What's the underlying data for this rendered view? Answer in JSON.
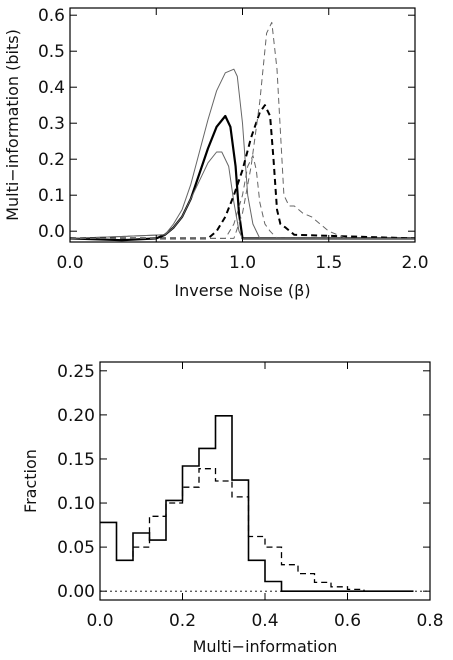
{
  "chart_data": [
    {
      "type": "line",
      "title": "",
      "xlabel": "Inverse Noise (β)",
      "ylabel": "Multi−information (bits)",
      "xlim": [
        0.0,
        2.0
      ],
      "ylim": [
        -0.03,
        0.62
      ],
      "xticks": [
        "0.0",
        "0.5",
        "1.0",
        "1.5",
        "2.0"
      ],
      "yticks": [
        "0.0",
        "0.1",
        "0.2",
        "0.3",
        "0.4",
        "0.5",
        "0.6"
      ],
      "grid": false,
      "series": [
        {
          "style": "solid-thick",
          "color": "#000000",
          "x": [
            0.0,
            0.3,
            0.5,
            0.55,
            0.6,
            0.65,
            0.7,
            0.75,
            0.8,
            0.85,
            0.9,
            0.93,
            0.96,
            0.98,
            1.0,
            2.0
          ],
          "y": [
            -0.02,
            -0.025,
            -0.02,
            -0.01,
            0.01,
            0.04,
            0.09,
            0.16,
            0.23,
            0.29,
            0.32,
            0.29,
            0.18,
            0.05,
            -0.02,
            -0.02
          ]
        },
        {
          "style": "solid-thin",
          "color": "#666666",
          "x": [
            0.0,
            0.55,
            0.6,
            0.65,
            0.7,
            0.75,
            0.8,
            0.85,
            0.9,
            0.95,
            0.97,
            1.0,
            1.03,
            1.06,
            1.1,
            1.15,
            2.0
          ],
          "y": [
            -0.02,
            -0.01,
            0.02,
            0.06,
            0.13,
            0.22,
            0.31,
            0.39,
            0.44,
            0.45,
            0.43,
            0.3,
            0.1,
            0.02,
            -0.02,
            -0.02,
            -0.02
          ]
        },
        {
          "style": "solid-thin",
          "color": "#666666",
          "x": [
            0.0,
            0.55,
            0.6,
            0.65,
            0.7,
            0.75,
            0.8,
            0.85,
            0.88,
            0.92,
            0.95,
            0.98,
            1.0,
            2.0
          ],
          "y": [
            -0.02,
            -0.01,
            0.01,
            0.04,
            0.09,
            0.14,
            0.19,
            0.22,
            0.22,
            0.18,
            0.08,
            0.0,
            -0.02,
            -0.02
          ]
        },
        {
          "style": "dashed-thick",
          "color": "#000000",
          "x": [
            0.0,
            0.8,
            0.85,
            0.9,
            0.95,
            1.0,
            1.05,
            1.1,
            1.13,
            1.16,
            1.18,
            1.2,
            1.22,
            1.25,
            1.3,
            2.0
          ],
          "y": [
            -0.02,
            -0.02,
            0.0,
            0.04,
            0.1,
            0.17,
            0.26,
            0.33,
            0.35,
            0.32,
            0.2,
            0.06,
            0.02,
            0.01,
            -0.01,
            -0.02
          ]
        },
        {
          "style": "dashed-thin",
          "color": "#666666",
          "x": [
            0.0,
            0.95,
            1.0,
            1.05,
            1.1,
            1.14,
            1.17,
            1.2,
            1.24,
            1.27,
            1.3,
            1.35,
            1.4,
            1.45,
            1.5,
            1.55,
            1.6,
            2.0
          ],
          "y": [
            -0.02,
            -0.02,
            0.05,
            0.18,
            0.36,
            0.55,
            0.58,
            0.45,
            0.1,
            0.07,
            0.07,
            0.05,
            0.04,
            0.02,
            0.0,
            -0.01,
            -0.02,
            -0.02
          ]
        },
        {
          "style": "dashed-thin",
          "color": "#666666",
          "x": [
            0.0,
            0.9,
            0.95,
            1.0,
            1.03,
            1.06,
            1.08,
            1.1,
            1.13,
            1.16,
            1.2,
            2.0
          ],
          "y": [
            -0.02,
            -0.02,
            0.02,
            0.1,
            0.18,
            0.21,
            0.17,
            0.08,
            0.02,
            0.0,
            -0.02,
            -0.02
          ]
        }
      ]
    },
    {
      "type": "histogram",
      "title": "",
      "xlabel": "Multi−information",
      "ylabel": "Fraction",
      "xlim": [
        0.0,
        0.8
      ],
      "ylim": [
        -0.01,
        0.26
      ],
      "xticks": [
        "0.0",
        "0.2",
        "0.4",
        "0.6",
        "0.8"
      ],
      "yticks": [
        "0.00",
        "0.05",
        "0.10",
        "0.15",
        "0.20",
        "0.25"
      ],
      "grid": false,
      "bin_edges": [
        0.0,
        0.04,
        0.08,
        0.12,
        0.16,
        0.2,
        0.24,
        0.28,
        0.32,
        0.36,
        0.4,
        0.44,
        0.48,
        0.52,
        0.56,
        0.6,
        0.64,
        0.68,
        0.72,
        0.76
      ],
      "series": [
        {
          "style": "solid",
          "values": [
            0.078,
            0.035,
            0.066,
            0.058,
            0.103,
            0.142,
            0.162,
            0.199,
            0.126,
            0.035,
            0.011,
            0.0,
            0.0,
            0.0,
            0.0,
            0.0,
            0.0,
            0.0,
            0.0
          ]
        },
        {
          "style": "dashed",
          "values": [
            0.0,
            0.035,
            0.05,
            0.085,
            0.1,
            0.118,
            0.139,
            0.125,
            0.107,
            0.062,
            0.05,
            0.03,
            0.02,
            0.01,
            0.005,
            0.002,
            0.0,
            0.0,
            0.0
          ]
        }
      ]
    }
  ]
}
